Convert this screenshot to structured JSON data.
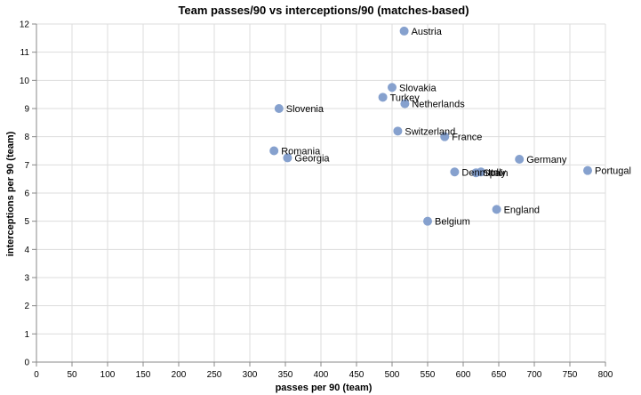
{
  "chart_data": {
    "type": "scatter",
    "title": "Team passes/90 vs interceptions/90 (matches-based)",
    "xlabel": "passes per 90 (team)",
    "ylabel": "interceptions per 90 (team)",
    "xlim": [
      0,
      800
    ],
    "ylim": [
      0,
      12
    ],
    "x_ticks": [
      0,
      50,
      100,
      150,
      200,
      250,
      300,
      350,
      400,
      450,
      500,
      550,
      600,
      650,
      700,
      750,
      800
    ],
    "y_ticks": [
      0,
      1,
      2,
      3,
      4,
      5,
      6,
      7,
      8,
      9,
      10,
      11,
      12
    ],
    "grid": true,
    "point_color": "#7f9ccb",
    "points": [
      {
        "label": "Austria",
        "x": 517,
        "y": 11.75
      },
      {
        "label": "Slovakia",
        "x": 500,
        "y": 9.75
      },
      {
        "label": "Turkey",
        "x": 487,
        "y": 9.4
      },
      {
        "label": "Netherlands",
        "x": 518,
        "y": 9.17
      },
      {
        "label": "Slovenia",
        "x": 341,
        "y": 9.0
      },
      {
        "label": "Switzerland",
        "x": 508,
        "y": 8.2
      },
      {
        "label": "France",
        "x": 574,
        "y": 8.0
      },
      {
        "label": "Romania",
        "x": 334,
        "y": 7.5
      },
      {
        "label": "Georgia",
        "x": 353,
        "y": 7.25
      },
      {
        "label": "Germany",
        "x": 679,
        "y": 7.2
      },
      {
        "label": "Portugal",
        "x": 775,
        "y": 6.8
      },
      {
        "label": "Denmark",
        "x": 588,
        "y": 6.75
      },
      {
        "label": "Italy",
        "x": 625,
        "y": 6.75
      },
      {
        "label": "Spain",
        "x": 618,
        "y": 6.72
      },
      {
        "label": "England",
        "x": 647,
        "y": 5.42
      },
      {
        "label": "Belgium",
        "x": 550,
        "y": 5.0
      }
    ]
  }
}
